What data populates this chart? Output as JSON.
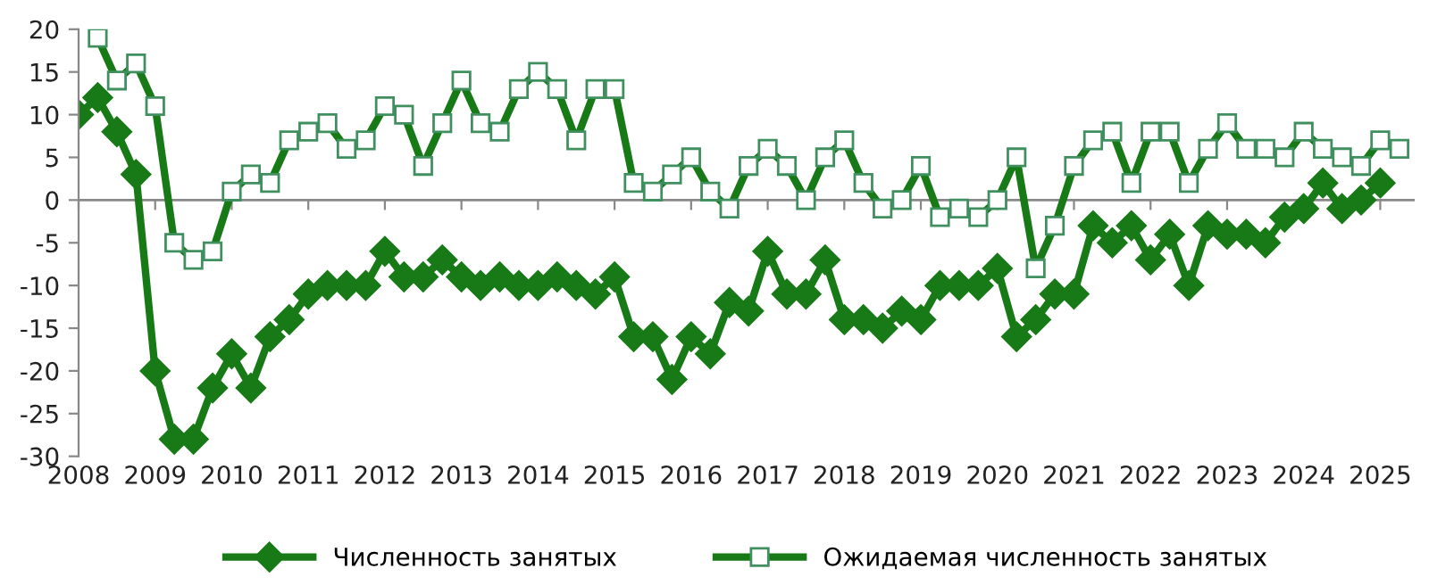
{
  "chart_data": {
    "type": "line",
    "xlim": [
      2008,
      2025.45
    ],
    "xticks": [
      2008,
      2009,
      2010,
      2011,
      2012,
      2013,
      2014,
      2015,
      2016,
      2017,
      2018,
      2019,
      2020,
      2021,
      2022,
      2023,
      2024,
      2025
    ],
    "ylim": [
      -30,
      20
    ],
    "yticks": [
      -30,
      -25,
      -20,
      -15,
      -10,
      -5,
      0,
      5,
      10,
      15,
      20
    ],
    "grid": false,
    "legend": "bottom",
    "ref_lines": [
      {
        "axis": "y",
        "value": 0,
        "color": "#888888"
      }
    ],
    "line_style": "solid",
    "series": [
      {
        "name": "Численность занятых",
        "color": "#177a17",
        "marker": "diamond",
        "x": [
          2008,
          2008.25,
          2008.5,
          2008.75,
          2009,
          2009.25,
          2009.5,
          2009.75,
          2010,
          2010.25,
          2010.5,
          2010.75,
          2011,
          2011.25,
          2011.5,
          2011.75,
          2012,
          2012.25,
          2012.5,
          2012.75,
          2013,
          2013.25,
          2013.5,
          2013.75,
          2014,
          2014.25,
          2014.5,
          2014.75,
          2015,
          2015.25,
          2015.5,
          2015.75,
          2016,
          2016.25,
          2016.5,
          2016.75,
          2017,
          2017.25,
          2017.5,
          2017.75,
          2018,
          2018.25,
          2018.5,
          2018.75,
          2019,
          2019.25,
          2019.5,
          2019.75,
          2020,
          2020.25,
          2020.5,
          2020.75,
          2021,
          2021.25,
          2021.5,
          2021.75,
          2022,
          2022.25,
          2022.5,
          2022.75,
          2023,
          2023.25,
          2023.5,
          2023.75,
          2024,
          2024.25,
          2024.5,
          2024.75,
          2025
        ],
        "values": [
          10,
          12,
          8,
          3,
          -20,
          -28,
          -28,
          -22,
          -18,
          -22,
          -16,
          -14,
          -11,
          -10,
          -10,
          -10,
          -6,
          -9,
          -9,
          -7,
          -9,
          -10,
          -9,
          -10,
          -10,
          -9,
          -10,
          -11,
          -9,
          -16,
          -16,
          -21,
          -16,
          -18,
          -12,
          -13,
          -6,
          -11,
          -11,
          -7,
          -14,
          -14,
          -15,
          -13,
          -14,
          -10,
          -10,
          -10,
          -8,
          -16,
          -14,
          -11,
          -11,
          -3,
          -5,
          -3,
          -7,
          -4,
          -10,
          -3,
          -4,
          -4,
          -5,
          -2,
          -1,
          2,
          -1,
          0,
          2
        ]
      },
      {
        "name": "Ожидаемая численность занятых",
        "color": "#177a17",
        "marker": "square",
        "x": [
          2008.25,
          2008.5,
          2008.75,
          2009,
          2009.25,
          2009.5,
          2009.75,
          2010,
          2010.25,
          2010.5,
          2010.75,
          2011,
          2011.25,
          2011.5,
          2011.75,
          2012,
          2012.25,
          2012.5,
          2012.75,
          2013,
          2013.25,
          2013.5,
          2013.75,
          2014,
          2014.25,
          2014.5,
          2014.75,
          2015,
          2015.25,
          2015.5,
          2015.75,
          2016,
          2016.25,
          2016.5,
          2016.75,
          2017,
          2017.25,
          2017.5,
          2017.75,
          2018,
          2018.25,
          2018.5,
          2018.75,
          2019,
          2019.25,
          2019.5,
          2019.75,
          2020,
          2020.25,
          2020.5,
          2020.75,
          2021,
          2021.25,
          2021.5,
          2021.75,
          2022,
          2022.25,
          2022.5,
          2022.75,
          2023,
          2023.25,
          2023.5,
          2023.75,
          2024,
          2024.25,
          2024.5,
          2024.75,
          2025,
          2025.25
        ],
        "values": [
          19,
          14,
          16,
          11,
          -5,
          -7,
          -6,
          1,
          3,
          2,
          7,
          8,
          9,
          6,
          7,
          11,
          10,
          4,
          9,
          14,
          9,
          8,
          13,
          15,
          13,
          7,
          13,
          13,
          2,
          1,
          3,
          5,
          1,
          -1,
          4,
          6,
          4,
          0,
          5,
          7,
          2,
          -1,
          0,
          4,
          -2,
          -1,
          -2,
          0,
          5,
          -8,
          -3,
          4,
          7,
          8,
          2,
          8,
          8,
          2,
          6,
          9,
          6,
          6,
          5,
          8,
          6,
          5,
          4,
          7,
          6
        ]
      }
    ]
  }
}
